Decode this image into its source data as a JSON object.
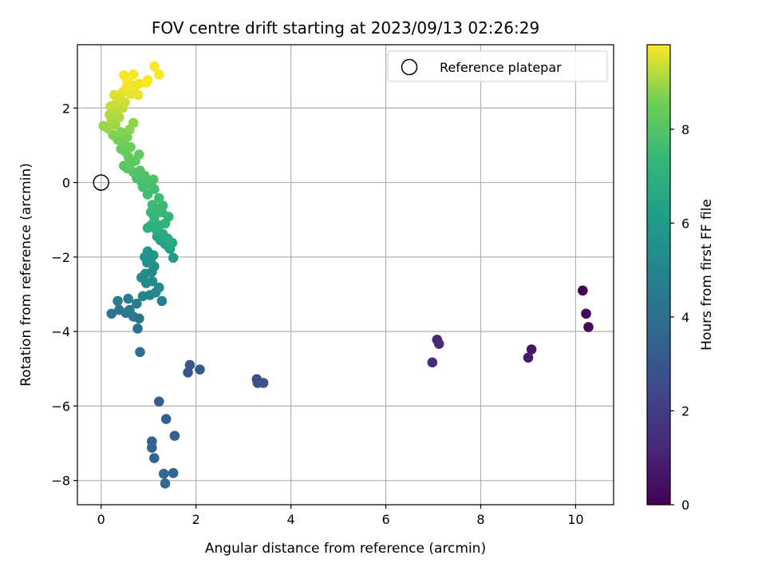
{
  "chart_data": {
    "type": "scatter",
    "title": "FOV centre drift starting at 2023/09/13 02:26:29",
    "xlabel": "Angular distance from reference (arcmin)",
    "ylabel": "Rotation from reference (arcmin)",
    "xlim": [
      -0.5,
      10.8
    ],
    "ylim": [
      -8.65,
      3.7
    ],
    "xticks": [
      0,
      2,
      4,
      6,
      8,
      10
    ],
    "yticks": [
      -8,
      -6,
      -4,
      -2,
      0,
      2
    ],
    "grid": true,
    "legend": {
      "position": "top-right",
      "entries": [
        "Reference platepar"
      ]
    },
    "reference_point": {
      "x": 0,
      "y": 0,
      "label": "Reference platepar"
    },
    "colorbar": {
      "label": "Hours from first FF file",
      "colormap": "viridis",
      "min": 0,
      "max": 9.8,
      "ticks": [
        0,
        2,
        4,
        6,
        8
      ]
    },
    "points": [
      [
        10.15,
        -2.9,
        0.0
      ],
      [
        10.22,
        -3.52,
        0.1
      ],
      [
        10.27,
        -3.88,
        0.2
      ],
      [
        9.07,
        -4.48,
        0.7
      ],
      [
        9.0,
        -4.7,
        0.8
      ],
      [
        7.08,
        -4.22,
        1.2
      ],
      [
        7.12,
        -4.33,
        1.3
      ],
      [
        6.98,
        -4.83,
        1.4
      ],
      [
        3.28,
        -5.28,
        2.6
      ],
      [
        3.3,
        -5.38,
        2.7
      ],
      [
        3.42,
        -5.38,
        2.8
      ],
      [
        1.87,
        -4.9,
        3.0
      ],
      [
        1.83,
        -5.1,
        3.05
      ],
      [
        2.08,
        -5.02,
        3.1
      ],
      [
        1.22,
        -5.88,
        3.3
      ],
      [
        1.37,
        -6.35,
        3.35
      ],
      [
        1.55,
        -6.8,
        3.4
      ],
      [
        1.07,
        -6.95,
        3.45
      ],
      [
        1.07,
        -7.12,
        3.5
      ],
      [
        1.12,
        -7.4,
        3.55
      ],
      [
        1.32,
        -7.82,
        3.6
      ],
      [
        1.52,
        -7.8,
        3.65
      ],
      [
        1.35,
        -8.08,
        3.7
      ],
      [
        0.82,
        -4.55,
        4.0
      ],
      [
        0.77,
        -3.92,
        4.1
      ],
      [
        0.8,
        -3.65,
        4.2
      ],
      [
        0.22,
        -3.52,
        4.3
      ],
      [
        0.38,
        -3.42,
        4.35
      ],
      [
        0.52,
        -3.5,
        4.4
      ],
      [
        0.68,
        -3.6,
        4.45
      ],
      [
        0.6,
        -3.42,
        4.5
      ],
      [
        0.35,
        -3.18,
        4.55
      ],
      [
        0.57,
        -3.12,
        4.6
      ],
      [
        0.75,
        -3.25,
        4.65
      ],
      [
        1.28,
        -3.18,
        4.7
      ],
      [
        0.88,
        -3.05,
        5.0
      ],
      [
        1.03,
        -3.02,
        5.05
      ],
      [
        1.15,
        -2.95,
        5.1
      ],
      [
        1.22,
        -2.82,
        5.15
      ],
      [
        0.95,
        -2.7,
        5.2
      ],
      [
        1.08,
        -2.65,
        5.25
      ],
      [
        0.85,
        -2.55,
        5.3
      ],
      [
        0.93,
        -2.45,
        5.35
      ],
      [
        1.07,
        -2.4,
        5.4
      ],
      [
        1.12,
        -2.25,
        5.45
      ],
      [
        0.97,
        -2.15,
        5.5
      ],
      [
        1.05,
        -2.05,
        5.6
      ],
      [
        0.92,
        -2.0,
        5.65
      ],
      [
        1.1,
        -1.95,
        5.7
      ],
      [
        0.98,
        -1.85,
        5.8
      ],
      [
        1.52,
        -2.02,
        6.0
      ],
      [
        1.45,
        -1.78,
        6.1
      ],
      [
        1.35,
        -1.65,
        6.2
      ],
      [
        1.42,
        -1.72,
        6.3
      ],
      [
        1.25,
        -1.55,
        6.4
      ],
      [
        1.18,
        -1.45,
        6.5
      ],
      [
        1.5,
        -1.62,
        6.6
      ],
      [
        1.4,
        -1.5,
        6.7
      ],
      [
        1.3,
        -1.38,
        6.8
      ],
      [
        1.15,
        -1.25,
        6.9
      ],
      [
        1.05,
        -1.15,
        7.0
      ],
      [
        0.98,
        -1.22,
        7.05
      ],
      [
        1.22,
        -1.15,
        7.1
      ],
      [
        1.35,
        -1.1,
        7.15
      ],
      [
        1.12,
        -0.95,
        7.2
      ],
      [
        1.42,
        -0.92,
        7.25
      ],
      [
        1.28,
        -0.8,
        7.3
      ],
      [
        1.05,
        -0.8,
        7.35
      ],
      [
        1.18,
        -0.7,
        7.4
      ],
      [
        1.3,
        -0.62,
        7.45
      ],
      [
        1.08,
        -0.6,
        7.5
      ],
      [
        1.22,
        -0.42,
        7.55
      ],
      [
        0.98,
        -0.32,
        7.6
      ],
      [
        1.12,
        -0.18,
        7.65
      ],
      [
        0.88,
        -0.12,
        7.7
      ],
      [
        1.02,
        -0.05,
        7.75
      ],
      [
        0.85,
        0.02,
        7.8
      ],
      [
        1.1,
        0.08,
        7.85
      ],
      [
        0.75,
        0.12,
        7.9
      ],
      [
        0.92,
        0.18,
        7.95
      ],
      [
        0.68,
        0.28,
        8.0
      ],
      [
        0.82,
        0.32,
        8.05
      ],
      [
        0.55,
        0.38,
        8.1
      ],
      [
        0.48,
        0.45,
        8.15
      ],
      [
        0.62,
        0.52,
        8.2
      ],
      [
        0.72,
        0.58,
        8.25
      ],
      [
        0.58,
        0.68,
        8.3
      ],
      [
        0.8,
        0.75,
        8.35
      ],
      [
        0.52,
        0.82,
        8.4
      ],
      [
        0.42,
        0.9,
        8.45
      ],
      [
        0.62,
        0.95,
        8.5
      ],
      [
        0.48,
        1.05,
        8.55
      ],
      [
        0.35,
        1.15,
        8.6
      ],
      [
        0.55,
        1.22,
        8.65
      ],
      [
        0.25,
        1.28,
        8.7
      ],
      [
        0.42,
        1.35,
        8.75
      ],
      [
        0.6,
        1.42,
        8.8
      ],
      [
        0.68,
        1.6,
        8.85
      ],
      [
        0.05,
        1.52,
        8.9
      ],
      [
        0.15,
        1.45,
        8.95
      ],
      [
        0.3,
        1.55,
        9.0
      ],
      [
        0.22,
        1.68,
        9.05
      ],
      [
        0.38,
        1.75,
        9.1
      ],
      [
        0.18,
        1.82,
        9.15
      ],
      [
        0.35,
        1.92,
        9.2
      ],
      [
        0.45,
        2.0,
        9.25
      ],
      [
        0.2,
        2.05,
        9.3
      ],
      [
        0.32,
        2.12,
        9.35
      ],
      [
        0.5,
        2.15,
        9.4
      ],
      [
        0.4,
        2.25,
        9.45
      ],
      [
        0.28,
        2.35,
        9.5
      ],
      [
        0.45,
        2.42,
        9.55
      ],
      [
        0.62,
        2.38,
        9.6
      ],
      [
        0.7,
        2.45,
        9.62
      ],
      [
        0.78,
        2.35,
        9.64
      ],
      [
        0.52,
        2.52,
        9.66
      ],
      [
        0.65,
        2.62,
        9.68
      ],
      [
        0.8,
        2.65,
        9.7
      ],
      [
        0.55,
        2.72,
        9.72
      ],
      [
        0.48,
        2.88,
        9.74
      ],
      [
        0.68,
        2.9,
        9.76
      ],
      [
        0.98,
        2.75,
        9.78
      ],
      [
        0.95,
        2.68,
        9.79
      ],
      [
        1.22,
        2.9,
        9.8
      ],
      [
        1.12,
        3.12,
        9.8
      ]
    ]
  }
}
